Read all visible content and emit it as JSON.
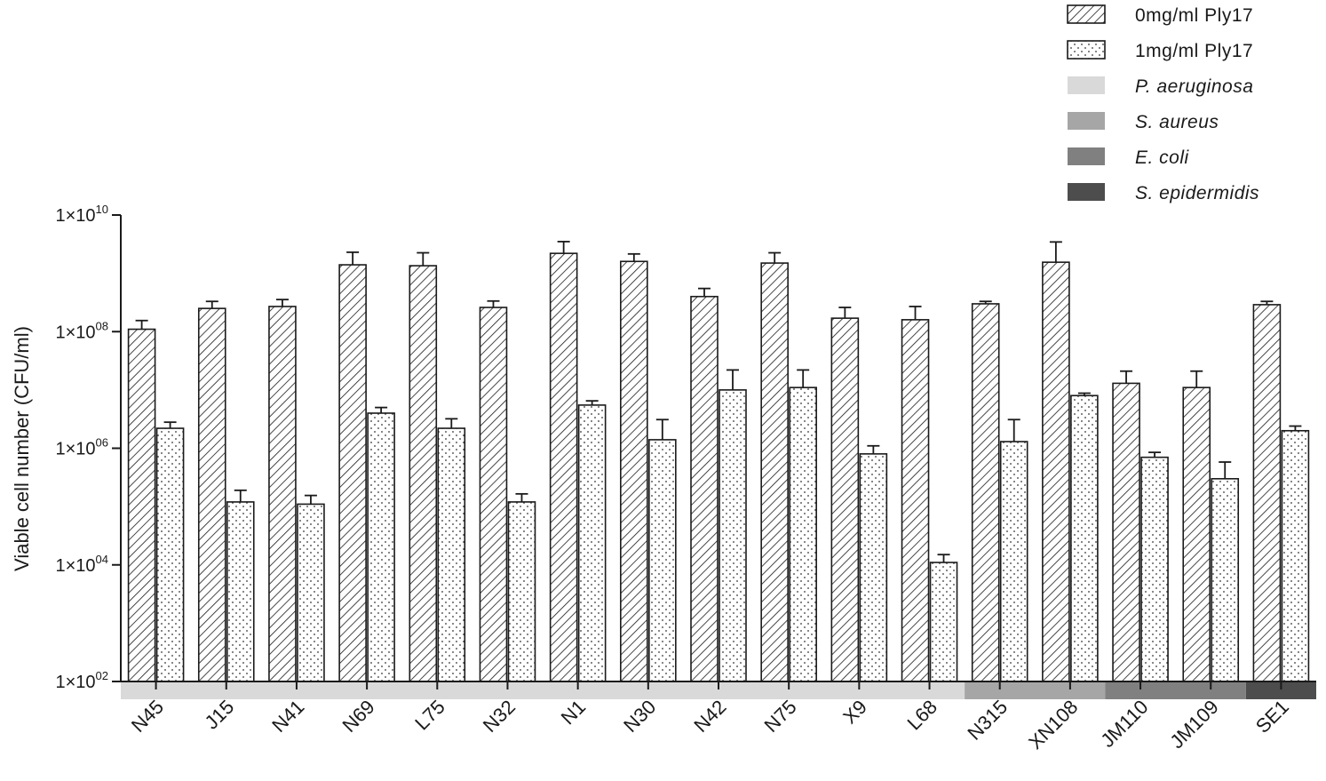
{
  "chart_data": {
    "type": "bar",
    "ylabel": "Viable cell number (CFU/ml)",
    "yscale": "log10",
    "ylim": [
      100,
      10000000000
    ],
    "yticks": [
      {
        "mant": "1×10",
        "exp": "02",
        "value": 100
      },
      {
        "mant": "1×10",
        "exp": "04",
        "value": 10000
      },
      {
        "mant": "1×10",
        "exp": "06",
        "value": 1000000
      },
      {
        "mant": "1×10",
        "exp": "08",
        "value": 100000000
      },
      {
        "mant": "1×10",
        "exp": "10",
        "value": 10000000000
      }
    ],
    "categories": [
      "N45",
      "J15",
      "N41",
      "N69",
      "L75",
      "N32",
      "N1",
      "N30",
      "N42",
      "N75",
      "X9",
      "L68",
      "N315",
      "XN108",
      "JM110",
      "JM109",
      "SE1"
    ],
    "groups": [
      0,
      0,
      0,
      0,
      0,
      0,
      0,
      0,
      0,
      0,
      0,
      0,
      1,
      1,
      2,
      2,
      3
    ],
    "series": [
      {
        "name": "0mg/ml Ply17",
        "pattern": "hatch",
        "values": [
          110000000,
          250000000,
          270000000,
          1400000000,
          1350000000,
          260000000,
          2200000000,
          1600000000,
          400000000,
          1500000000,
          170000000,
          160000000,
          300000000,
          1550000000,
          13000000,
          11000000,
          290000000
        ],
        "errors": [
          45000000,
          80000000,
          85000000,
          900000000,
          900000000,
          75000000,
          1300000000,
          550000000,
          150000000,
          750000000,
          90000000,
          110000000,
          30000000,
          1900000000,
          8000000,
          10000000,
          40000000
        ]
      },
      {
        "name": "1mg/ml Ply17",
        "pattern": "dots",
        "values": [
          2200000,
          120000,
          110000,
          4000000,
          2200000,
          120000,
          5500000,
          1400000,
          10000000,
          11000000,
          800000,
          11000,
          1300000,
          8000000,
          700000,
          300000,
          2000000
        ],
        "errors": [
          600000,
          70000,
          45000,
          1000000,
          1000000,
          45000,
          1000000,
          1700000,
          12000000,
          11000000,
          300000,
          4000,
          1800000,
          800000,
          150000,
          280000,
          400000
        ]
      }
    ],
    "group_legend": [
      {
        "name": "P. aeruginosa",
        "color": "#d9d9d9"
      },
      {
        "name": "S. aureus",
        "color": "#a6a6a6"
      },
      {
        "name": "E. coli",
        "color": "#808080"
      },
      {
        "name": "S. epidermidis",
        "color": "#4d4d4d"
      }
    ],
    "legend_position": "top-right"
  }
}
